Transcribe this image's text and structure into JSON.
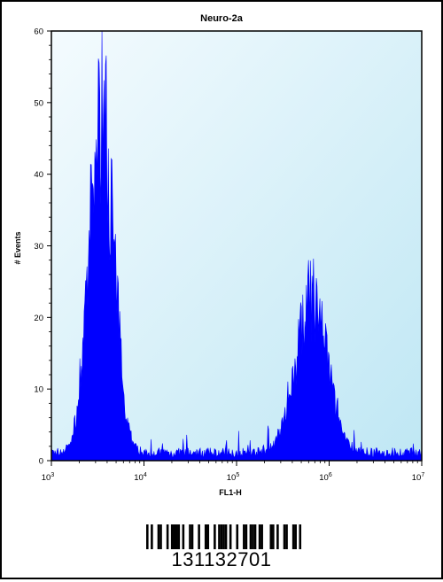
{
  "chart_data": {
    "type": "area",
    "title": "Neuro-2a",
    "xlabel": "FL1-H",
    "ylabel": "# Events",
    "xscale": "log",
    "xlim": [
      1000,
      10000000
    ],
    "ylim": [
      0,
      60
    ],
    "x_tick_labels": [
      {
        "base": "10",
        "exp": "3"
      },
      {
        "base": "10",
        "exp": "4"
      },
      {
        "base": "10",
        "exp": "5"
      },
      {
        "base": "10",
        "exp": "6"
      },
      {
        "base": "10",
        "exp": "7"
      }
    ],
    "y_ticks": [
      0,
      10,
      20,
      30,
      40,
      50,
      60
    ],
    "peaks": [
      {
        "center_fl1h": 3500,
        "max_events": 63
      },
      {
        "center_fl1h": 650000,
        "max_events": 28
      }
    ],
    "fill_color": "#0000ff",
    "plot_background": "#e6f5fa"
  },
  "barcode": {
    "number": "131132701"
  }
}
